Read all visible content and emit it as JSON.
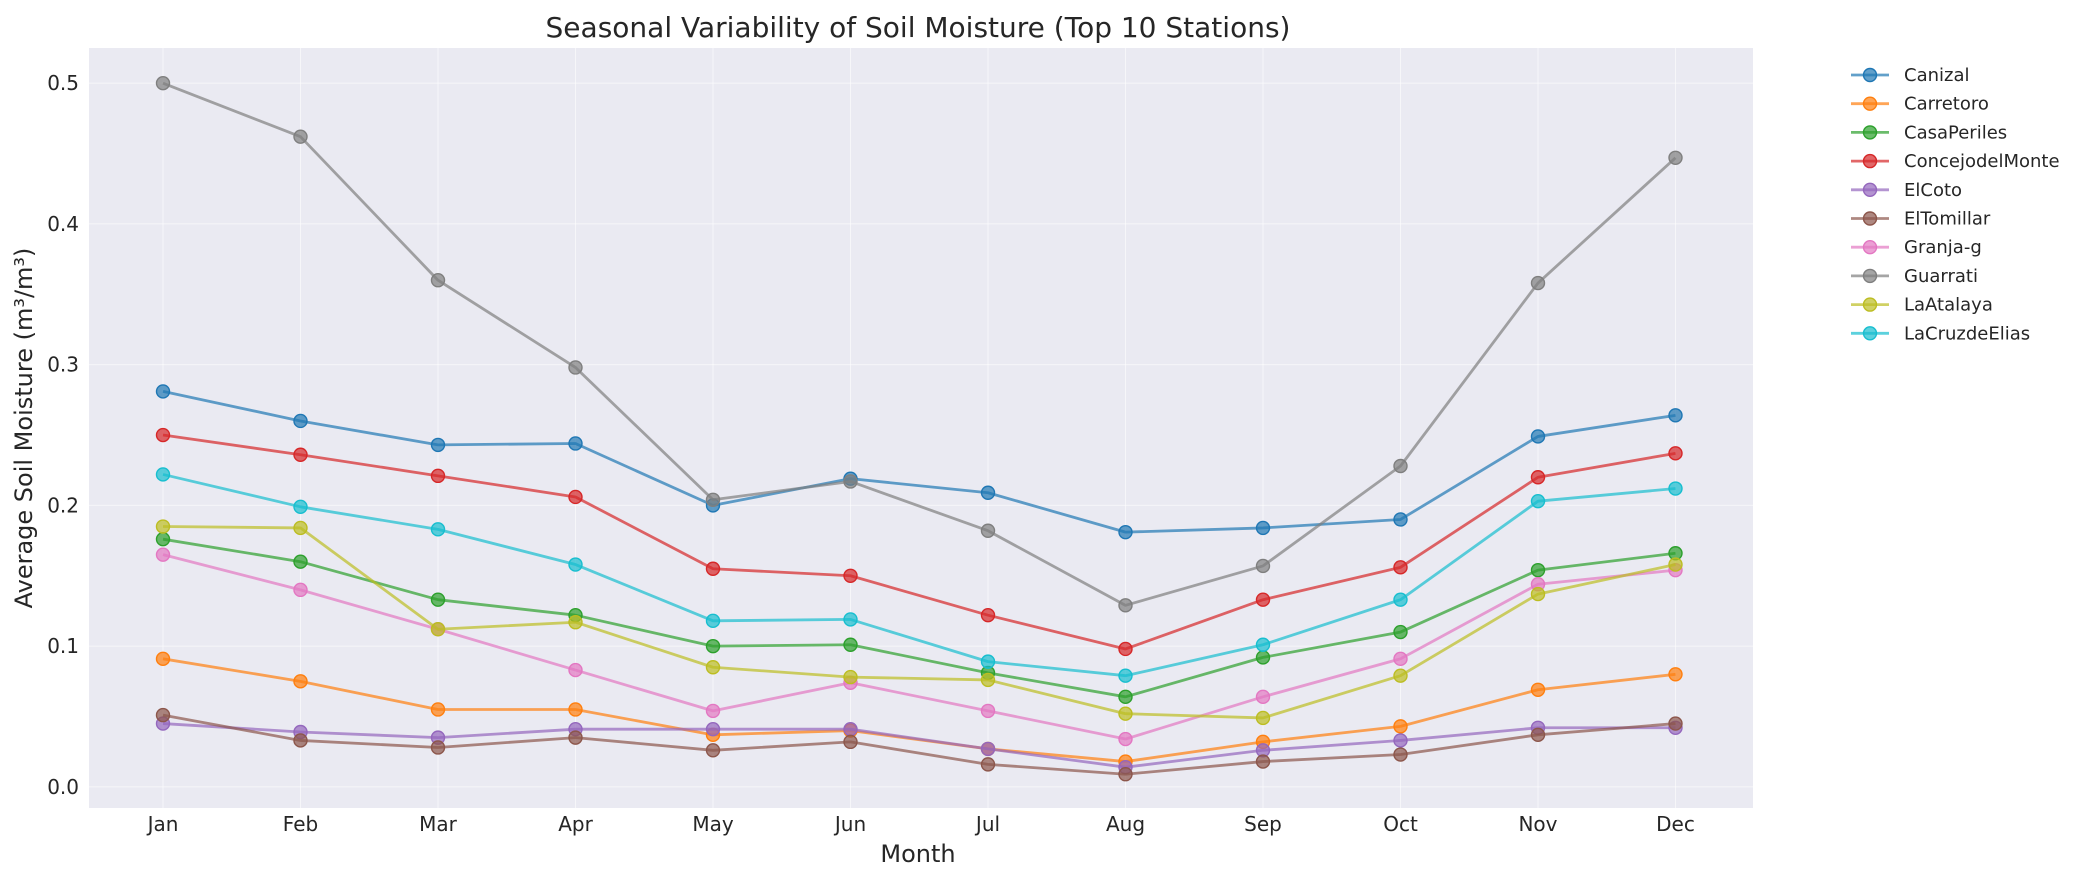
{
  "chart_data": {
    "type": "line",
    "title": "Seasonal Variability of Soil Moisture (Top 10 Stations)",
    "xlabel": "Month",
    "ylabel": "Average Soil Moisture (m³/m³)",
    "categories": [
      "Jan",
      "Feb",
      "Mar",
      "Apr",
      "May",
      "Jun",
      "Jul",
      "Aug",
      "Sep",
      "Oct",
      "Nov",
      "Dec"
    ],
    "ylim": [
      -0.015,
      0.525
    ],
    "yticks": [
      "0.0",
      "0.1",
      "0.2",
      "0.3",
      "0.4",
      "0.5"
    ],
    "grid": true,
    "legend_position": "outside-top-right",
    "series": [
      {
        "name": "Canizal",
        "color": "#1f77b4",
        "values": [
          0.281,
          0.26,
          0.243,
          0.244,
          0.2,
          0.219,
          0.209,
          0.181,
          0.184,
          0.19,
          0.249,
          0.264
        ]
      },
      {
        "name": "Carretoro",
        "color": "#ff7f0e",
        "values": [
          0.091,
          0.075,
          0.055,
          0.055,
          0.037,
          0.04,
          0.027,
          0.018,
          0.032,
          0.043,
          0.069,
          0.08
        ]
      },
      {
        "name": "CasaPeriles",
        "color": "#2ca02c",
        "values": [
          0.176,
          0.16,
          0.133,
          0.122,
          0.1,
          0.101,
          0.081,
          0.064,
          0.092,
          0.11,
          0.154,
          0.166
        ]
      },
      {
        "name": "ConcejodelMonte",
        "color": "#d62728",
        "values": [
          0.25,
          0.236,
          0.221,
          0.206,
          0.155,
          0.15,
          0.122,
          0.098,
          0.133,
          0.156,
          0.22,
          0.237
        ]
      },
      {
        "name": "ElCoto",
        "color": "#9467bd",
        "values": [
          0.045,
          0.039,
          0.035,
          0.041,
          0.041,
          0.041,
          0.027,
          0.014,
          0.026,
          0.033,
          0.042,
          0.042
        ]
      },
      {
        "name": "ElTomillar",
        "color": "#8c564b",
        "values": [
          0.051,
          0.033,
          0.028,
          0.035,
          0.026,
          0.032,
          0.016,
          0.009,
          0.018,
          0.023,
          0.037,
          0.045
        ]
      },
      {
        "name": "Granja-g",
        "color": "#e377c2",
        "values": [
          0.165,
          0.14,
          0.112,
          0.083,
          0.054,
          0.074,
          0.054,
          0.034,
          0.064,
          0.091,
          0.144,
          0.154
        ]
      },
      {
        "name": "Guarrati",
        "color": "#7f7f7f",
        "values": [
          0.5,
          0.462,
          0.36,
          0.298,
          0.204,
          0.217,
          0.182,
          0.129,
          0.157,
          0.228,
          0.358,
          0.447
        ]
      },
      {
        "name": "LaAtalaya",
        "color": "#bcbd22",
        "values": [
          0.185,
          0.184,
          0.112,
          0.117,
          0.085,
          0.078,
          0.076,
          0.052,
          0.049,
          0.079,
          0.137,
          0.158
        ]
      },
      {
        "name": "LaCruzdeElias",
        "color": "#17becf",
        "values": [
          0.222,
          0.199,
          0.183,
          0.158,
          0.118,
          0.119,
          0.089,
          0.079,
          0.101,
          0.133,
          0.203,
          0.212
        ]
      }
    ]
  }
}
